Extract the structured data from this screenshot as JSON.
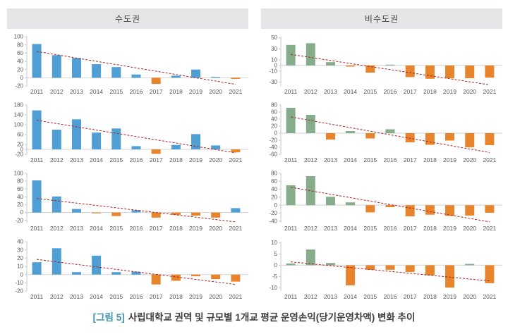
{
  "panels": [
    {
      "title": "수도권"
    },
    {
      "title": "비수도권"
    }
  ],
  "caption": {
    "tag": "[그림 5]",
    "text": "사립대학교 권역 및 규모별 1개교 평균 운영손익(당기운영차액) 변화 추이"
  },
  "style": {
    "axis_color": "#c8c8c8",
    "zero_line_color": "#d9d9d9",
    "tick_text_color": "#595959",
    "header_bg": "#e4e5e7",
    "caption_tag_color": "#4191ab",
    "blue": "#4f9fd5",
    "green": "#85ad8c",
    "orange": "#e8842c",
    "trend_red": "#b22222"
  },
  "chart_data": [
    {
      "id": "metro-row1",
      "panel": "수도권",
      "type": "bar",
      "categories": [
        "2011",
        "2012",
        "2013",
        "2014",
        "2015",
        "2016",
        "2017",
        "2018",
        "2019",
        "2020",
        "2021"
      ],
      "values": [
        82,
        55,
        48,
        33,
        26,
        8,
        -15,
        5,
        20,
        2,
        -3
      ],
      "yticks": [
        100,
        80,
        60,
        40,
        20,
        0,
        -20
      ],
      "ylim": [
        -20,
        100
      ],
      "trend": [
        64,
        -16
      ],
      "positive_color": "#4f9fd5",
      "negative_color": "#e8842c",
      "trend_color": "#b22222"
    },
    {
      "id": "metro-row2",
      "panel": "수도권",
      "type": "bar",
      "categories": [
        "2011",
        "2012",
        "2013",
        "2014",
        "2015",
        "2016",
        "2017",
        "2018",
        "2019",
        "2020",
        "2021"
      ],
      "values": [
        158,
        80,
        122,
        68,
        85,
        13,
        -18,
        18,
        62,
        16,
        -12
      ],
      "yticks": [
        180,
        140,
        100,
        60,
        20,
        0,
        -20
      ],
      "ylim": [
        -20,
        180
      ],
      "trend": [
        118,
        -14
      ],
      "positive_color": "#4f9fd5",
      "negative_color": "#e8842c",
      "trend_color": "#b22222"
    },
    {
      "id": "metro-row3",
      "panel": "수도권",
      "type": "bar",
      "categories": [
        "2011",
        "2012",
        "2013",
        "2014",
        "2015",
        "2016",
        "2017",
        "2018",
        "2019",
        "2020",
        "2021"
      ],
      "values": [
        82,
        41,
        9,
        -2,
        -9,
        6,
        -13,
        -6,
        -8,
        -13,
        11
      ],
      "yticks": [
        100,
        80,
        60,
        40,
        20,
        0,
        -20
      ],
      "ylim": [
        -26,
        100
      ],
      "trend": [
        36,
        -24
      ],
      "positive_color": "#4f9fd5",
      "negative_color": "#e8842c",
      "trend_color": "#b22222"
    },
    {
      "id": "metro-row4",
      "panel": "수도권",
      "type": "bar",
      "categories": [
        "2011",
        "2012",
        "2013",
        "2014",
        "2015",
        "2016",
        "2017",
        "2018",
        "2019",
        "2020",
        "2021"
      ],
      "values": [
        15,
        32,
        3,
        23,
        3,
        3.5,
        -12,
        -7.5,
        -2,
        -5.5,
        -8.5
      ],
      "yticks": [
        40,
        30,
        20,
        10,
        0,
        -10,
        -20
      ],
      "ylim": [
        -20,
        40
      ],
      "trend": [
        18.5,
        -12
      ],
      "positive_color": "#4f9fd5",
      "negative_color": "#e8842c",
      "trend_color": "#b22222"
    },
    {
      "id": "nonmetro-row1",
      "panel": "비수도권",
      "type": "bar",
      "categories": [
        "2011",
        "2012",
        "2013",
        "2014",
        "2015",
        "2016",
        "2017",
        "2018",
        "2019",
        "2020",
        "2021"
      ],
      "values": [
        37,
        40,
        6,
        -2,
        -13,
        1.5,
        -21,
        -24,
        -23,
        -23,
        -22
      ],
      "yticks": [
        50,
        30,
        10,
        0,
        -10,
        -30
      ],
      "ylim": [
        -37,
        52
      ],
      "trend": [
        20,
        -35
      ],
      "positive_color": "#85ad8c",
      "negative_color": "#e8842c",
      "trend_color": "#b22222"
    },
    {
      "id": "nonmetro-row2",
      "panel": "비수도권",
      "type": "bar",
      "categories": [
        "2011",
        "2012",
        "2013",
        "2014",
        "2015",
        "2016",
        "2017",
        "2018",
        "2019",
        "2020",
        "2021"
      ],
      "values": [
        72,
        52,
        -18,
        6,
        -15,
        11,
        -26,
        -33,
        -21,
        -40,
        -34
      ],
      "yticks": [
        80,
        60,
        40,
        20,
        0,
        -20,
        -40,
        -60
      ],
      "ylim": [
        -60,
        80
      ],
      "trend": [
        46,
        -55
      ],
      "positive_color": "#85ad8c",
      "negative_color": "#e8842c",
      "trend_color": "#b22222"
    },
    {
      "id": "nonmetro-row3",
      "panel": "비수도권",
      "type": "bar",
      "categories": [
        "2011",
        "2012",
        "2013",
        "2014",
        "2015",
        "2016",
        "2017",
        "2018",
        "2019",
        "2020",
        "2021"
      ],
      "values": [
        50,
        73,
        21,
        7,
        -18,
        -5,
        -28,
        -24,
        -27,
        -26,
        -19
      ],
      "yticks": [
        80,
        60,
        40,
        20,
        0,
        -20,
        -40
      ],
      "ylim": [
        -44,
        80
      ],
      "trend": [
        45,
        -42
      ],
      "positive_color": "#85ad8c",
      "negative_color": "#e8842c",
      "trend_color": "#b22222"
    },
    {
      "id": "nonmetro-row4",
      "panel": "비수도권",
      "type": "bar",
      "categories": [
        "2011",
        "2012",
        "2013",
        "2014",
        "2015",
        "2016",
        "2017",
        "2018",
        "2019",
        "2020",
        "2021"
      ],
      "values": [
        0.8,
        7,
        1,
        -9,
        -2,
        -2,
        -3,
        -4.5,
        -10,
        0.6,
        -8
      ],
      "yticks": [
        10,
        5,
        0,
        -5,
        -10
      ],
      "ylim": [
        -11.5,
        10.5
      ],
      "trend": [
        1.5,
        -7
      ],
      "positive_color": "#85ad8c",
      "negative_color": "#e8842c",
      "trend_color": "#b22222"
    }
  ]
}
